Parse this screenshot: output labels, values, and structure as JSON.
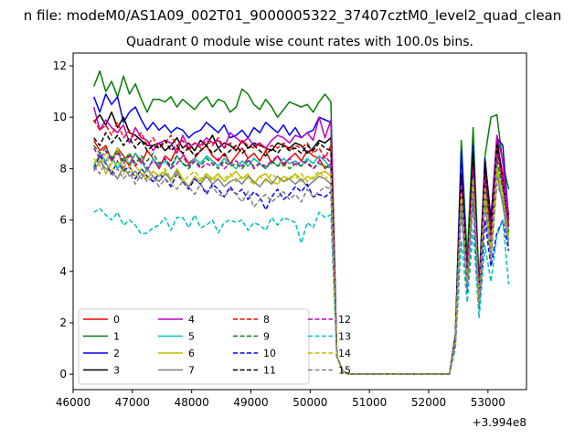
{
  "chart_data": {
    "type": "line",
    "suptitle": "n file: modeM0/AS1A09_002T01_9000005322_37407cztM0_level2_quad_clean",
    "title": "Quadrant 0 module wise count rates with 100.0s bins.",
    "xlabel": "",
    "ylabel": "",
    "x_offset_label": "+3.994e8",
    "xlim": [
      46000,
      53650
    ],
    "ylim": [
      -0.6,
      12.5
    ],
    "x_ticks": [
      46000,
      47000,
      48000,
      49000,
      50000,
      51000,
      52000,
      53000
    ],
    "x_tick_labels": [
      "46000",
      "47000",
      "48000",
      "49000",
      "50000",
      "51000",
      "52000",
      "53000"
    ],
    "y_ticks": [
      0,
      2,
      4,
      6,
      8,
      10,
      12
    ],
    "y_tick_labels": [
      "0",
      "2",
      "4",
      "6",
      "8",
      "10",
      "12"
    ],
    "grid": false,
    "legend_position": "lower-left",
    "legend_columns": 4,
    "x_start": 46350,
    "x_step": 100,
    "series": [
      {
        "name": "0",
        "color": "#ff0000",
        "dash": "solid",
        "values": [
          9.1,
          8.7,
          8.9,
          8.3,
          8.8,
          8.5,
          8.1,
          8.6,
          8.2,
          8.7,
          8.4,
          8.0,
          8.5,
          8.3,
          8.8,
          8.6,
          8.2,
          8.4,
          8.7,
          8.9,
          8.5,
          8.3,
          8.6,
          8.2,
          8.5,
          8.8,
          8.4,
          8.6,
          8.3,
          8.7,
          8.2,
          8.5,
          8.1,
          8.4,
          8.6,
          8.3,
          8.7,
          8.5,
          8.4,
          8.0,
          8.2,
          0.7,
          0.12,
          0,
          0,
          0,
          0,
          0,
          0,
          0,
          0,
          0,
          0,
          0,
          0,
          0,
          0,
          0,
          0,
          0,
          0,
          1.5,
          7.8,
          4.0,
          8.5,
          3.0,
          8.0,
          5.0,
          9.0,
          7.8,
          6.2
        ]
      },
      {
        "name": "1",
        "color": "#008000",
        "dash": "solid",
        "values": [
          11.2,
          11.8,
          11.0,
          11.4,
          10.8,
          11.6,
          10.9,
          11.3,
          10.7,
          10.2,
          10.7,
          10.7,
          10.6,
          10.8,
          10.4,
          10.7,
          10.5,
          10.3,
          10.6,
          10.8,
          10.4,
          10.7,
          10.6,
          10.2,
          10.4,
          11.1,
          10.9,
          10.5,
          10.3,
          10.7,
          10.4,
          10.0,
          10.3,
          10.6,
          10.5,
          10.4,
          10.5,
          10.2,
          10.6,
          10.9,
          10.6,
          0.7,
          0.12,
          0,
          0,
          0,
          0,
          0,
          0,
          0,
          0,
          0,
          0,
          0,
          0,
          0,
          0,
          0,
          0,
          0,
          0,
          1.5,
          9.1,
          4.5,
          9.6,
          3.5,
          8.5,
          10.0,
          10.1,
          8.2,
          7.2
        ]
      },
      {
        "name": "2",
        "color": "#0000ff",
        "dash": "solid",
        "values": [
          10.8,
          10.2,
          10.9,
          10.5,
          10.8,
          9.8,
          10.2,
          10.4,
          9.9,
          9.5,
          9.8,
          9.5,
          9.7,
          9.4,
          9.6,
          9.5,
          9.2,
          9.4,
          9.5,
          9.8,
          9.6,
          9.4,
          9.7,
          9.2,
          9.3,
          9.5,
          9.2,
          9.6,
          9.4,
          9.8,
          9.6,
          9.4,
          9.7,
          9.3,
          9.6,
          9.2,
          9.4,
          9.5,
          10.0,
          9.9,
          9.8,
          0.7,
          0.12,
          0,
          0,
          0,
          0,
          0,
          0,
          0,
          0,
          0,
          0,
          0,
          0,
          0,
          0,
          0,
          0,
          0,
          0,
          1.5,
          8.7,
          3.8,
          8.9,
          3.2,
          8.4,
          6.0,
          9.2,
          8.9,
          6.0
        ]
      },
      {
        "name": "3",
        "color": "#000000",
        "dash": "solid",
        "values": [
          9.8,
          10.1,
          9.7,
          10.2,
          9.6,
          10.0,
          9.4,
          9.3,
          9.1,
          8.9,
          8.9,
          9.0,
          8.7,
          8.9,
          9.2,
          8.8,
          9.0,
          8.7,
          9.1,
          8.9,
          9.3,
          8.8,
          9.0,
          8.9,
          8.7,
          9.1,
          8.8,
          9.0,
          8.9,
          8.8,
          8.7,
          9.0,
          8.9,
          8.8,
          9.0,
          8.9,
          8.6,
          8.8,
          9.1,
          9.0,
          9.2,
          0.7,
          0.12,
          0,
          0,
          0,
          0,
          0,
          0,
          0,
          0,
          0,
          0,
          0,
          0,
          0,
          0,
          0,
          0,
          0,
          0,
          1.5,
          7.8,
          3.8,
          8.6,
          3.0,
          8.3,
          6.0,
          9.2,
          7.5,
          6.2
        ]
      },
      {
        "name": "4",
        "color": "#bf00bf",
        "dash": "solid",
        "values": [
          10.4,
          9.5,
          9.9,
          9.6,
          9.4,
          9.7,
          9.0,
          9.6,
          9.2,
          9.1,
          8.7,
          9.0,
          9.1,
          9.0,
          8.6,
          9.3,
          8.8,
          9.0,
          8.9,
          9.2,
          9.0,
          9.1,
          8.8,
          9.4,
          9.2,
          9.0,
          9.2,
          8.9,
          9.0,
          8.8,
          9.1,
          9.3,
          9.2,
          9.0,
          9.3,
          9.2,
          9.4,
          9.1,
          10.0,
          9.2,
          9.9,
          0.7,
          0.12,
          0,
          0,
          0,
          0,
          0,
          0,
          0,
          0,
          0,
          0,
          0,
          0,
          0,
          0,
          0,
          0,
          0,
          0,
          1.4,
          7.5,
          4.0,
          8.0,
          3.2,
          8.0,
          5.5,
          9.3,
          8.3,
          6.0
        ]
      },
      {
        "name": "5",
        "color": "#00bfbf",
        "dash": "solid",
        "values": [
          8.1,
          8.6,
          8.3,
          8.5,
          8.0,
          8.4,
          8.2,
          8.6,
          8.3,
          7.9,
          8.4,
          8.1,
          8.3,
          8.0,
          8.5,
          8.2,
          8.1,
          8.4,
          8.2,
          8.5,
          8.3,
          8.1,
          8.4,
          8.2,
          8.0,
          8.3,
          8.1,
          8.4,
          8.2,
          8.0,
          8.3,
          8.1,
          8.4,
          8.2,
          8.3,
          8.1,
          8.4,
          8.2,
          8.5,
          8.3,
          8.0,
          0.7,
          0.12,
          0,
          0,
          0,
          0,
          0,
          0,
          0,
          0,
          0,
          0,
          0,
          0,
          0,
          0,
          0,
          0,
          0,
          0,
          1.4,
          7.2,
          3.6,
          7.8,
          3.0,
          7.4,
          5.0,
          8.0,
          7.0,
          5.2
        ]
      },
      {
        "name": "6",
        "color": "#bfbf00",
        "dash": "solid",
        "values": [
          8.2,
          8.5,
          7.8,
          8.2,
          8.8,
          7.9,
          8.6,
          8.1,
          7.8,
          7.6,
          7.9,
          7.7,
          7.9,
          7.5,
          8.0,
          7.6,
          7.3,
          7.7,
          7.5,
          7.8,
          7.6,
          7.8,
          7.5,
          7.7,
          7.9,
          7.6,
          7.8,
          7.4,
          7.7,
          7.8,
          7.5,
          7.4,
          7.7,
          7.6,
          7.8,
          7.5,
          7.7,
          7.6,
          7.8,
          7.9,
          7.7,
          0.7,
          0.12,
          0,
          0,
          0,
          0,
          0,
          0,
          0,
          0,
          0,
          0,
          0,
          0,
          0,
          0,
          0,
          0,
          0,
          0,
          1.4,
          7.0,
          3.6,
          7.5,
          2.8,
          7.0,
          5.0,
          8.2,
          7.0,
          5.4
        ]
      },
      {
        "name": "7",
        "color": "#808080",
        "dash": "solid",
        "values": [
          7.9,
          8.3,
          8.0,
          7.9,
          7.6,
          8.1,
          7.7,
          7.9,
          7.6,
          8.0,
          7.7,
          7.5,
          7.8,
          7.6,
          7.9,
          7.5,
          7.3,
          7.6,
          7.4,
          7.7,
          7.4,
          7.6,
          7.3,
          7.5,
          7.6,
          7.4,
          7.7,
          7.5,
          7.3,
          7.6,
          7.4,
          7.7,
          7.5,
          7.6,
          7.4,
          7.6,
          7.3,
          7.5,
          7.7,
          7.6,
          7.4,
          0.7,
          0.12,
          0,
          0,
          0,
          0,
          0,
          0,
          0,
          0,
          0,
          0,
          0,
          0,
          0,
          0,
          0,
          0,
          0,
          0,
          1.3,
          6.8,
          3.4,
          7.2,
          2.8,
          6.8,
          4.6,
          7.8,
          6.6,
          5.0
        ]
      },
      {
        "name": "8",
        "color": "#ff0000",
        "dash": "dashed",
        "values": [
          9.9,
          9.5,
          9.7,
          9.3,
          9.8,
          9.2,
          9.5,
          9.1,
          9.4,
          8.9,
          9.2,
          8.8,
          9.0,
          9.3,
          8.9,
          9.1,
          8.7,
          9.0,
          8.8,
          9.1,
          8.9,
          9.2,
          8.8,
          9.0,
          8.7,
          9.1,
          8.9,
          8.8,
          9.0,
          8.7,
          8.9,
          8.8,
          9.0,
          8.7,
          8.9,
          8.8,
          9.0,
          8.6,
          8.8,
          8.4,
          8.9,
          0.7,
          0.12,
          0,
          0,
          0,
          0,
          0,
          0,
          0,
          0,
          0,
          0,
          0,
          0,
          0,
          0,
          0,
          0,
          0,
          0,
          1.4,
          7.6,
          3.8,
          8.3,
          3.0,
          7.9,
          5.2,
          8.8,
          7.5,
          5.8
        ]
      },
      {
        "name": "9",
        "color": "#008000",
        "dash": "dashed",
        "values": [
          8.9,
          8.6,
          8.8,
          8.4,
          8.7,
          8.3,
          8.6,
          8.2,
          8.5,
          8.3,
          8.6,
          8.2,
          8.4,
          8.1,
          8.5,
          8.2,
          8.0,
          8.3,
          8.1,
          8.4,
          8.2,
          8.0,
          8.3,
          8.1,
          8.2,
          8.0,
          8.3,
          8.1,
          8.2,
          8.0,
          8.3,
          8.1,
          8.2,
          8.0,
          8.2,
          8.1,
          8.3,
          8.0,
          8.2,
          8.1,
          8.0,
          0.7,
          0.12,
          0,
          0,
          0,
          0,
          0,
          0,
          0,
          0,
          0,
          0,
          0,
          0,
          0,
          0,
          0,
          0,
          0,
          0,
          1.3,
          7.2,
          3.6,
          7.8,
          2.9,
          7.4,
          5.0,
          8.4,
          7.2,
          5.5
        ]
      },
      {
        "name": "10",
        "color": "#0000ff",
        "dash": "dashed",
        "values": [
          8.0,
          8.5,
          8.2,
          7.8,
          8.3,
          7.9,
          8.1,
          7.6,
          8.0,
          7.7,
          7.5,
          7.8,
          7.6,
          7.3,
          7.8,
          7.5,
          7.2,
          7.6,
          7.4,
          7.0,
          7.4,
          7.2,
          6.9,
          7.3,
          7.0,
          7.2,
          6.8,
          7.1,
          6.9,
          6.4,
          6.9,
          7.2,
          6.8,
          7.0,
          7.3,
          7.1,
          7.4,
          6.9,
          7.0,
          6.9,
          7.1,
          0.7,
          0.12,
          0,
          0,
          0,
          0,
          0,
          0,
          0,
          0,
          0,
          0,
          0,
          0,
          0,
          0,
          0,
          0,
          0,
          0,
          1.2,
          6.5,
          3.2,
          6.8,
          2.5,
          6.0,
          4.2,
          5.5,
          6.0,
          4.8
        ]
      },
      {
        "name": "11",
        "color": "#000000",
        "dash": "dashed",
        "values": [
          9.2,
          8.9,
          9.4,
          9.0,
          9.3,
          8.9,
          9.2,
          8.8,
          9.1,
          8.7,
          8.9,
          8.8,
          9.1,
          8.7,
          8.9,
          8.6,
          8.8,
          8.5,
          8.7,
          8.9,
          8.6,
          8.8,
          8.5,
          8.7,
          8.9,
          8.6,
          8.8,
          8.9,
          8.7,
          8.5,
          8.8,
          8.6,
          8.9,
          8.7,
          8.8,
          8.6,
          8.9,
          8.7,
          9.0,
          8.8,
          8.7,
          0.7,
          0.12,
          0,
          0,
          0,
          0,
          0,
          0,
          0,
          0,
          0,
          0,
          0,
          0,
          0,
          0,
          0,
          0,
          0,
          0,
          1.4,
          7.8,
          3.8,
          8.6,
          3.0,
          8.1,
          5.4,
          8.9,
          7.4,
          5.8
        ]
      },
      {
        "name": "12",
        "color": "#bf00bf",
        "dash": "dashed",
        "values": [
          8.8,
          8.4,
          8.7,
          8.3,
          8.6,
          8.2,
          8.5,
          8.1,
          8.4,
          8.0,
          8.3,
          8.1,
          8.4,
          8.0,
          8.2,
          8.5,
          8.1,
          8.3,
          8.0,
          8.2,
          8.1,
          8.4,
          8.0,
          8.2,
          8.3,
          8.1,
          8.4,
          8.0,
          8.2,
          8.1,
          8.3,
          8.5,
          8.2,
          8.4,
          8.1,
          8.3,
          8.2,
          8.0,
          8.3,
          8.5,
          8.2,
          0.7,
          0.12,
          0,
          0,
          0,
          0,
          0,
          0,
          0,
          0,
          0,
          0,
          0,
          0,
          0,
          0,
          0,
          0,
          0,
          0,
          1.4,
          7.4,
          3.7,
          8.0,
          3.0,
          7.6,
          5.2,
          8.6,
          7.6,
          5.7
        ]
      },
      {
        "name": "13",
        "color": "#00bfbf",
        "dash": "dashed",
        "values": [
          6.3,
          6.45,
          6.2,
          6.0,
          6.3,
          5.8,
          6.0,
          5.8,
          5.45,
          5.5,
          5.7,
          5.8,
          6.1,
          5.6,
          6.1,
          6.1,
          5.7,
          6.2,
          5.7,
          5.8,
          6.0,
          5.5,
          5.9,
          6.0,
          5.9,
          6.0,
          5.6,
          5.9,
          5.8,
          5.6,
          6.1,
          5.8,
          6.1,
          6.0,
          5.9,
          5.1,
          5.9,
          5.7,
          6.3,
          6.1,
          6.2,
          0.7,
          0.12,
          0,
          0,
          0,
          0,
          0,
          0,
          0,
          0,
          0,
          0,
          0,
          0,
          0,
          0,
          0,
          0,
          0,
          0,
          1.0,
          5.2,
          2.8,
          5.6,
          2.2,
          5.0,
          3.6,
          5.4,
          6.0,
          3.5
        ]
      },
      {
        "name": "14",
        "color": "#bfbf00",
        "dash": "dashed",
        "values": [
          8.4,
          8.1,
          8.6,
          7.9,
          8.3,
          7.8,
          8.1,
          7.7,
          8.0,
          7.6,
          7.9,
          7.7,
          8.0,
          7.6,
          7.8,
          7.5,
          7.7,
          7.9,
          7.6,
          7.8,
          7.5,
          7.7,
          7.6,
          7.8,
          7.5,
          7.7,
          7.6,
          7.4,
          7.7,
          7.5,
          7.8,
          7.6,
          7.5,
          7.7,
          7.6,
          7.8,
          7.5,
          7.7,
          7.9,
          7.6,
          7.8,
          0.7,
          0.12,
          0,
          0,
          0,
          0,
          0,
          0,
          0,
          0,
          0,
          0,
          0,
          0,
          0,
          0,
          0,
          0,
          0,
          0,
          1.3,
          7.0,
          3.5,
          7.6,
          2.8,
          7.2,
          4.8,
          8.0,
          7.0,
          5.2
        ]
      },
      {
        "name": "15",
        "color": "#808080",
        "dash": "dashed",
        "values": [
          8.1,
          7.8,
          8.3,
          7.7,
          8.0,
          7.6,
          7.9,
          7.4,
          7.8,
          7.5,
          7.7,
          7.3,
          7.6,
          7.4,
          7.2,
          7.5,
          7.3,
          7.0,
          7.4,
          7.1,
          7.3,
          7.0,
          6.9,
          7.2,
          7.0,
          6.7,
          7.1,
          6.5,
          6.8,
          7.0,
          6.7,
          6.9,
          7.1,
          6.8,
          7.0,
          6.7,
          7.2,
          6.9,
          7.1,
          7.3,
          7.2,
          0.7,
          0.12,
          0,
          0,
          0,
          0,
          0,
          0,
          0,
          0,
          0,
          0,
          0,
          0,
          0,
          0,
          0,
          0,
          0,
          0,
          1.2,
          6.6,
          3.3,
          7.0,
          2.6,
          6.6,
          4.4,
          7.4,
          6.8,
          5.0
        ]
      }
    ]
  }
}
